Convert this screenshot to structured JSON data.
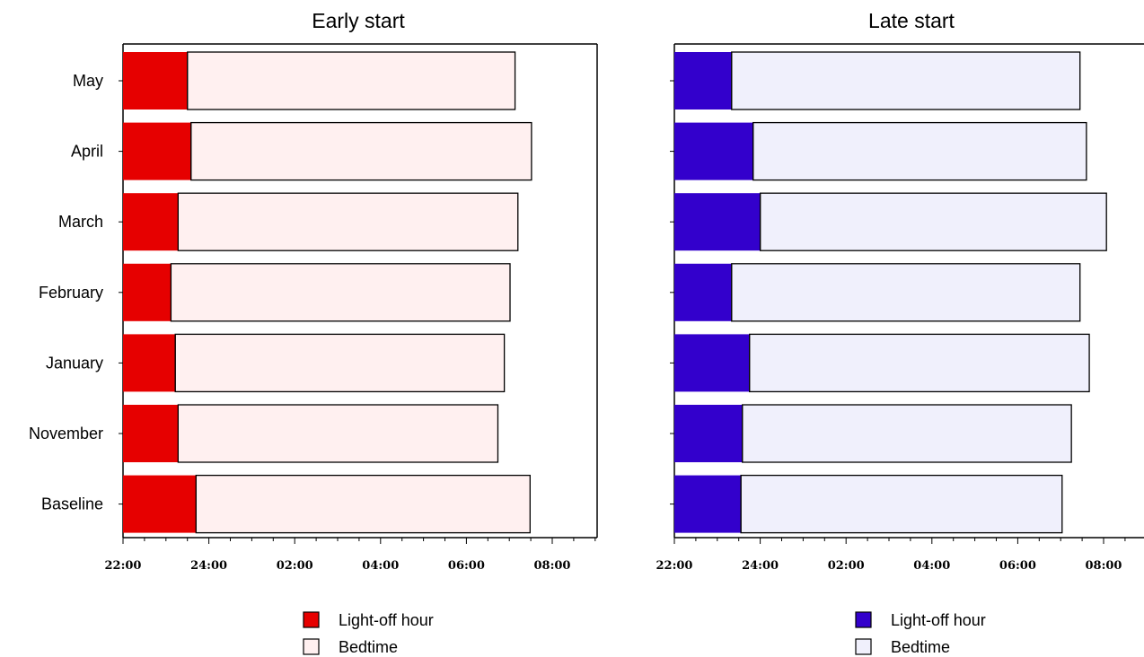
{
  "chart_data": [
    {
      "type": "bar",
      "orientation": "horizontal",
      "stacked": true,
      "title": "Early start",
      "categories": [
        "May",
        "April",
        "March",
        "February",
        "January",
        "November",
        "Baseline"
      ],
      "x_ticks": [
        "22:00",
        "24:00",
        "02:00",
        "04:00",
        "06:00",
        "08:00"
      ],
      "xlim": [
        "22:00",
        "09:00"
      ],
      "series": [
        {
          "name": "Light-off hour",
          "color": "#e60000",
          "values": [
            "23:30",
            "23:35",
            "23:17",
            "23:07",
            "23:13",
            "23:17",
            "23:42"
          ]
        },
        {
          "name": "Bedtime",
          "color": "#fff0f0",
          "values": [
            "07:08",
            "07:31",
            "07:12",
            "07:01",
            "06:53",
            "06:44",
            "07:29"
          ]
        }
      ]
    },
    {
      "type": "bar",
      "orientation": "horizontal",
      "stacked": true,
      "title": "Late start",
      "categories": [
        "May",
        "April",
        "March",
        "February",
        "January",
        "November",
        "Baseline"
      ],
      "x_ticks": [
        "22:00",
        "24:00",
        "02:00",
        "04:00",
        "06:00",
        "08:00"
      ],
      "xlim": [
        "22:00",
        "09:00"
      ],
      "series": [
        {
          "name": "Light-off hour",
          "color": "#3300cc",
          "values": [
            "23:20",
            "23:50",
            "24:00",
            "23:20",
            "23:45",
            "23:35",
            "23:33"
          ]
        },
        {
          "name": "Bedtime",
          "color": "#f0f0fc",
          "values": [
            "07:27",
            "07:36",
            "08:04",
            "07:27",
            "07:40",
            "07:15",
            "07:02"
          ]
        }
      ]
    }
  ]
}
